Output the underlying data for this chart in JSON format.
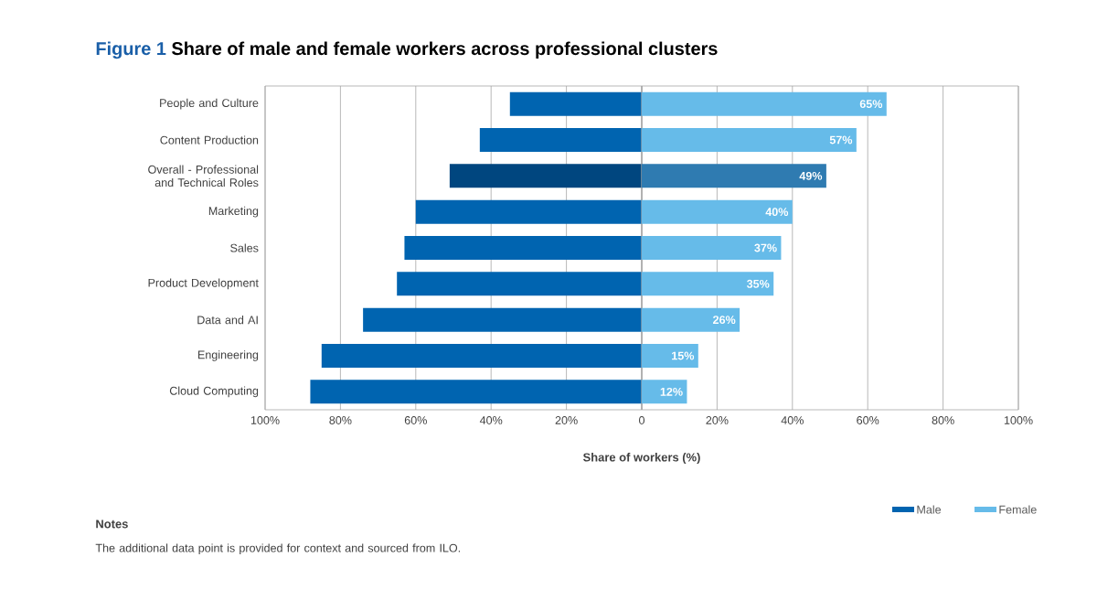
{
  "chart_data": [
    {
      "type": "bar",
      "orientation": "horizontal",
      "title": "Figure 1",
      "subtitle": "Share of male and female workers across professional clusters",
      "categories": [
        "People and Culture",
        "Content Production",
        "Overall - Professional and Technical Roles",
        "Marketing",
        "Sales",
        "Product Development",
        "Data and AI",
        "Engineering",
        "Cloud Computing"
      ],
      "series": [
        {
          "name": "Male",
          "color": "#0064b0",
          "colors": [
            "#0064b0",
            "#0064b0",
            "#00467f",
            "#0064b0",
            "#0064b0",
            "#0064b0",
            "#0064b0",
            "#0064b0",
            "#0064b0"
          ],
          "values": [
            35,
            43,
            51,
            60,
            63,
            65,
            74,
            85,
            88
          ]
        }
      ],
      "xlim": [
        100,
        0
      ],
      "xticks": [
        {
          "value": 100,
          "label": "100%"
        },
        {
          "value": 80,
          "label": "80%"
        },
        {
          "value": 60,
          "label": "60%"
        },
        {
          "value": 40,
          "label": "40%"
        },
        {
          "value": 20,
          "label": "20%"
        },
        0
      ],
      "grid": "x",
      "legend": "bottom right",
      "annotations": [
        "Notes",
        "The additional data point is provided for context and sourced from ILO."
      ]
    },
    {
      "type": "bar",
      "orientation": "horizontal",
      "categories": [
        null,
        null,
        null,
        null,
        null,
        null,
        null,
        null,
        null
      ],
      "series": [
        {
          "name": "Female",
          "color": "#66bbe9",
          "colors": [
            "#66bbe9",
            "#66bbe9",
            "#2f7bb1",
            "#66bbe9",
            "#66bbe9",
            "#66bbe9",
            "#66bbe9",
            "#66bbe9",
            "#66bbe9"
          ],
          "values": [
            65,
            57,
            49,
            40,
            37,
            35,
            26,
            15,
            12
          ],
          "value_labels": [
            "65%",
            "57%",
            "49%",
            "40%",
            "37%",
            "35%",
            "26%",
            "15%",
            "12%"
          ]
        }
      ],
      "xlabel": "Share of workers (%)",
      "xlim": [
        0,
        100
      ],
      "xticks": [
        {
          "value": 0,
          "label": null
        },
        {
          "value": 20,
          "label": "20%"
        },
        {
          "value": 40,
          "label": "40%"
        },
        {
          "value": 60,
          "label": "60%"
        },
        {
          "value": 80,
          "label": "80%"
        },
        {
          "value": 100,
          "label": "100%"
        }
      ],
      "tick_labels": "x",
      "grid": "x",
      "legend": "bottom right"
    }
  ]
}
